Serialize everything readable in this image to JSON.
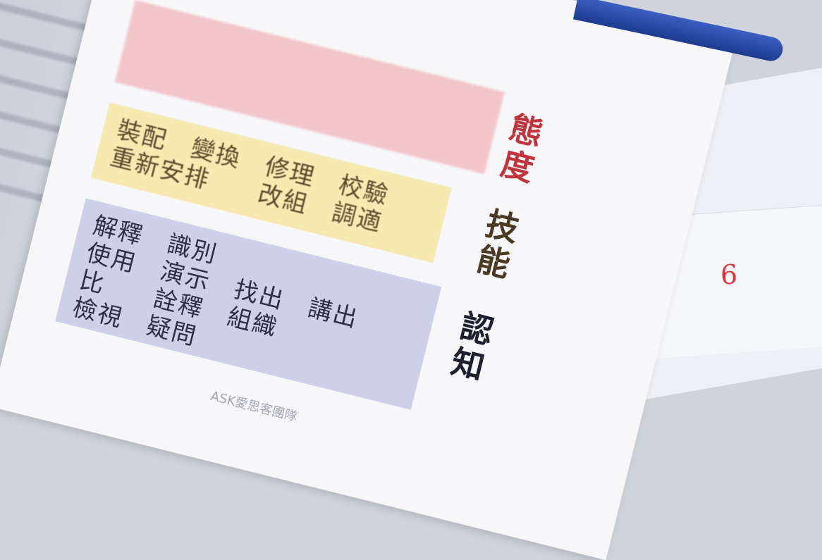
{
  "attitude": {
    "label": "態度"
  },
  "skill": {
    "label": "技能",
    "rows": [
      "裝配　變換　修理　校驗",
      "重新安排　　改組　調適"
    ]
  },
  "cognition": {
    "label": "認知",
    "rows": [
      "解釋　識別",
      "使用　演示　找出　講出",
      "比　　詮釋　組織",
      "檢視　疑問"
    ]
  },
  "footer": "ASK愛思客團隊",
  "note": "6"
}
